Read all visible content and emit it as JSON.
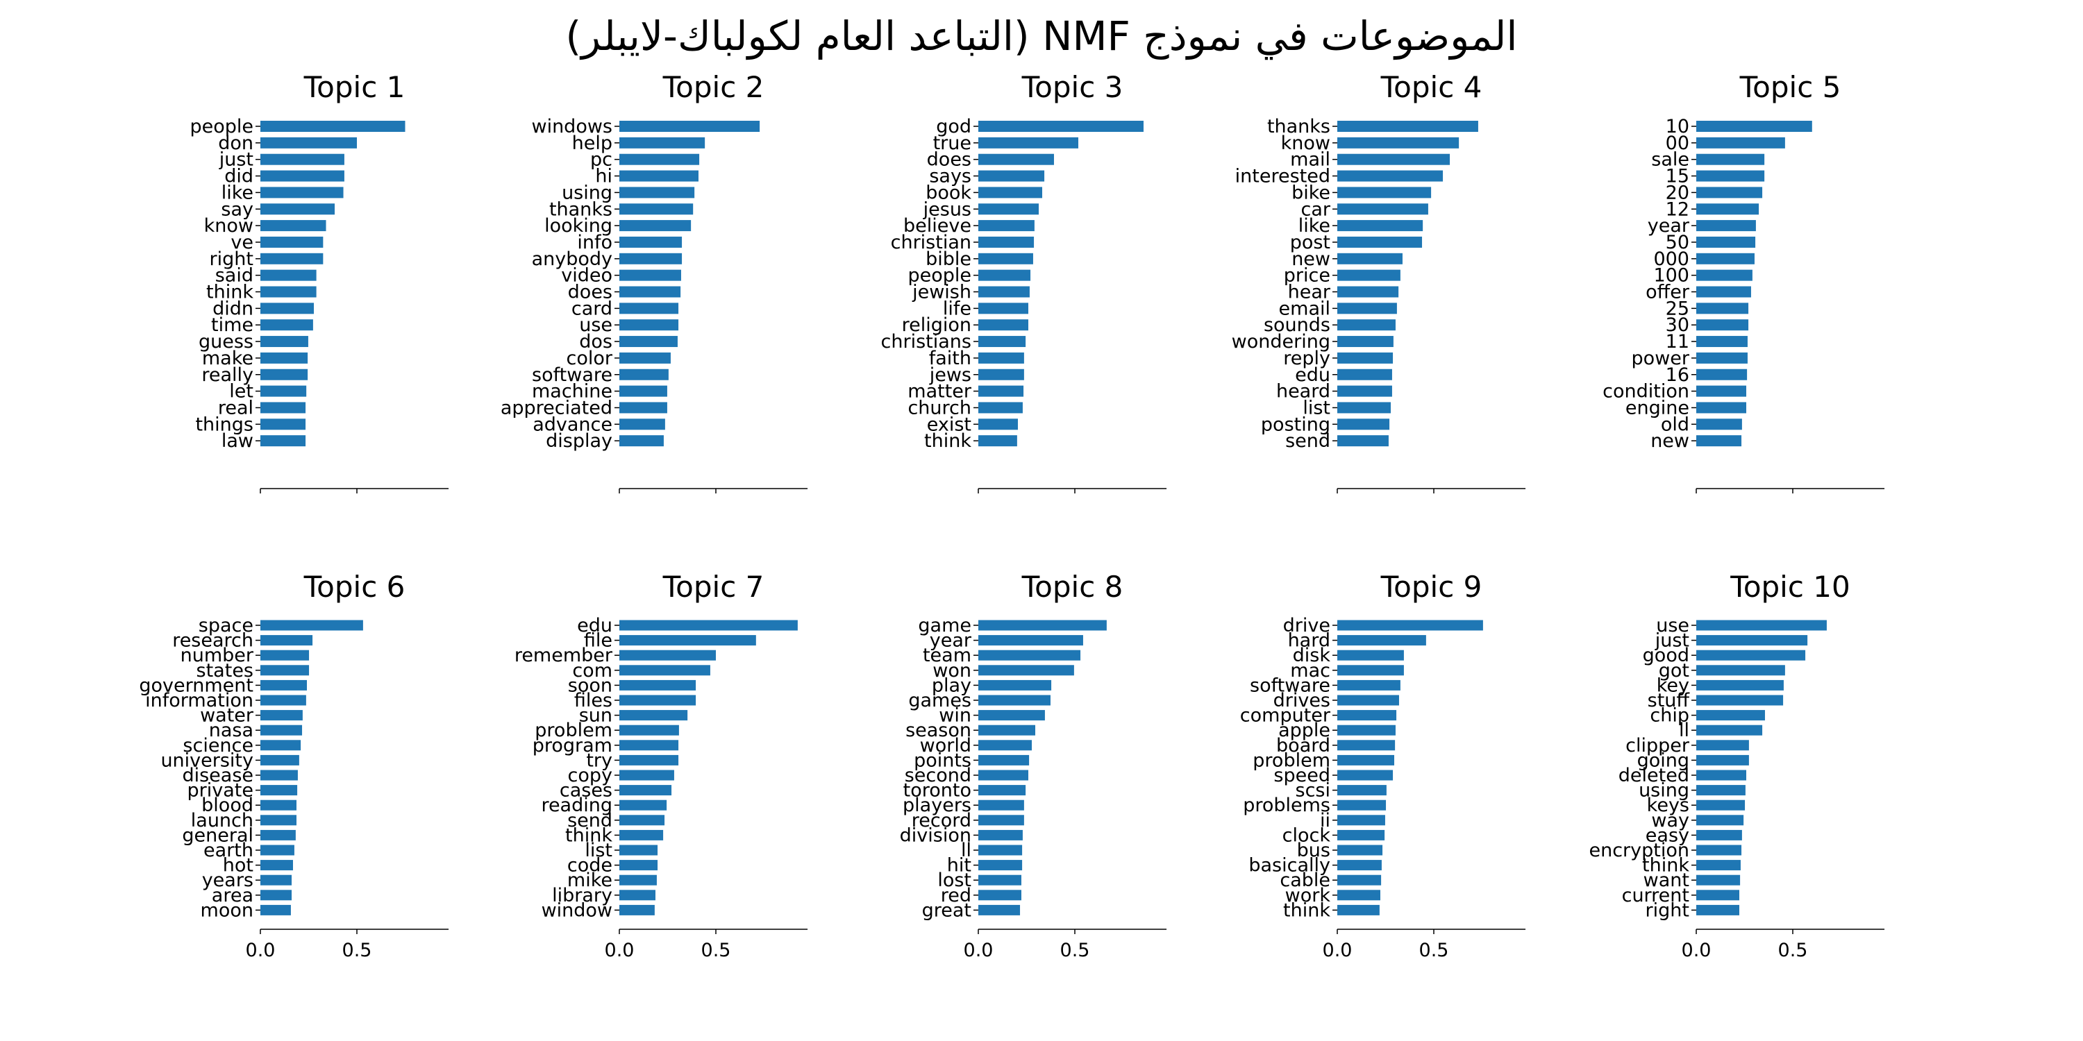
{
  "figure": {
    "title": "الموضوعات في نموذج NMF (التباعد العام لكولباك-لايبلر)"
  },
  "style": {
    "bar_color": "#1f77b4",
    "axis_color": "#000000",
    "background": "#ffffff"
  },
  "chart_data": {
    "type": "bar",
    "orientation": "horizontal",
    "title": "الموضوعات في نموذج NMF (التباعد العام لكولباك-لايبلر)",
    "layout": {
      "rows": 2,
      "cols": 5,
      "grid": false,
      "legend": "none",
      "sharex": true
    },
    "xlim": [
      0,
      0.975
    ],
    "xticks": [
      0.0,
      0.5
    ],
    "xtick_labels": [
      "0.0",
      "0.5"
    ],
    "xtick_labels_shown_on": "bottom row only",
    "subplots": [
      {
        "title": "Topic 1",
        "categories": [
          "people",
          "don",
          "just",
          "did",
          "like",
          "say",
          "know",
          "ve",
          "right",
          "said",
          "think",
          "didn",
          "time",
          "guess",
          "make",
          "really",
          "let",
          "real",
          "things",
          "law"
        ],
        "values": [
          0.75,
          0.5,
          0.435,
          0.435,
          0.43,
          0.385,
          0.34,
          0.325,
          0.325,
          0.29,
          0.29,
          0.277,
          0.273,
          0.248,
          0.245,
          0.245,
          0.238,
          0.234,
          0.234,
          0.234
        ]
      },
      {
        "title": "Topic 2",
        "categories": [
          "windows",
          "help",
          "pc",
          "hi",
          "using",
          "thanks",
          "looking",
          "info",
          "anybody",
          "video",
          "does",
          "card",
          "use",
          "dos",
          "color",
          "software",
          "machine",
          "appreciated",
          "advance",
          "display"
        ],
        "values": [
          0.727,
          0.443,
          0.414,
          0.41,
          0.389,
          0.382,
          0.371,
          0.324,
          0.324,
          0.32,
          0.317,
          0.306,
          0.306,
          0.302,
          0.266,
          0.255,
          0.248,
          0.248,
          0.237,
          0.23
        ]
      },
      {
        "title": "Topic 3",
        "categories": [
          "god",
          "true",
          "does",
          "says",
          "book",
          "jesus",
          "believe",
          "christian",
          "bible",
          "people",
          "jewish",
          "life",
          "religion",
          "christians",
          "faith",
          "jews",
          "matter",
          "church",
          "exist",
          "think"
        ],
        "values": [
          0.856,
          0.518,
          0.392,
          0.342,
          0.331,
          0.313,
          0.291,
          0.288,
          0.284,
          0.27,
          0.266,
          0.259,
          0.259,
          0.245,
          0.237,
          0.237,
          0.234,
          0.23,
          0.205,
          0.201
        ]
      },
      {
        "title": "Topic 4",
        "categories": [
          "thanks",
          "know",
          "mail",
          "interested",
          "bike",
          "car",
          "like",
          "post",
          "new",
          "price",
          "hear",
          "email",
          "sounds",
          "wondering",
          "reply",
          "edu",
          "heard",
          "list",
          "posting",
          "send"
        ],
        "values": [
          0.73,
          0.63,
          0.583,
          0.547,
          0.486,
          0.471,
          0.443,
          0.439,
          0.338,
          0.327,
          0.317,
          0.309,
          0.302,
          0.291,
          0.288,
          0.284,
          0.284,
          0.277,
          0.27,
          0.266
        ]
      },
      {
        "title": "Topic 5",
        "categories": [
          "10",
          "00",
          "sale",
          "15",
          "20",
          "12",
          "year",
          "50",
          "000",
          "100",
          "offer",
          "25",
          "30",
          "11",
          "power",
          "16",
          "condition",
          "engine",
          "old",
          "new"
        ],
        "values": [
          0.6,
          0.46,
          0.353,
          0.353,
          0.342,
          0.324,
          0.309,
          0.306,
          0.302,
          0.291,
          0.284,
          0.27,
          0.27,
          0.266,
          0.266,
          0.263,
          0.259,
          0.259,
          0.237,
          0.234
        ]
      },
      {
        "title": "Topic 6",
        "categories": [
          "space",
          "research",
          "number",
          "states",
          "government",
          "information",
          "water",
          "nasa",
          "science",
          "university",
          "disease",
          "private",
          "blood",
          "launch",
          "general",
          "earth",
          "hot",
          "years",
          "area",
          "moon"
        ],
        "values": [
          0.532,
          0.27,
          0.252,
          0.252,
          0.241,
          0.237,
          0.219,
          0.216,
          0.209,
          0.201,
          0.194,
          0.191,
          0.187,
          0.187,
          0.183,
          0.176,
          0.169,
          0.162,
          0.162,
          0.158
        ]
      },
      {
        "title": "Topic 7",
        "categories": [
          "edu",
          "file",
          "remember",
          "com",
          "soon",
          "files",
          "sun",
          "problem",
          "program",
          "try",
          "copy",
          "cases",
          "reading",
          "send",
          "think",
          "list",
          "code",
          "mike",
          "library",
          "window"
        ],
        "values": [
          0.924,
          0.708,
          0.5,
          0.471,
          0.396,
          0.396,
          0.353,
          0.309,
          0.306,
          0.306,
          0.284,
          0.27,
          0.245,
          0.234,
          0.227,
          0.198,
          0.198,
          0.194,
          0.187,
          0.183
        ]
      },
      {
        "title": "Topic 8",
        "categories": [
          "game",
          "year",
          "team",
          "won",
          "play",
          "games",
          "win",
          "season",
          "world",
          "points",
          "second",
          "toronto",
          "players",
          "record",
          "division",
          "ll",
          "hit",
          "lost",
          "red",
          "great"
        ],
        "values": [
          0.665,
          0.543,
          0.529,
          0.496,
          0.378,
          0.374,
          0.345,
          0.295,
          0.277,
          0.263,
          0.259,
          0.245,
          0.237,
          0.237,
          0.23,
          0.227,
          0.227,
          0.223,
          0.223,
          0.216
        ]
      },
      {
        "title": "Topic 9",
        "categories": [
          "drive",
          "hard",
          "disk",
          "mac",
          "software",
          "drives",
          "computer",
          "apple",
          "board",
          "problem",
          "speed",
          "scsi",
          "problems",
          "ii",
          "clock",
          "bus",
          "basically",
          "cable",
          "work",
          "think"
        ],
        "values": [
          0.755,
          0.46,
          0.345,
          0.345,
          0.327,
          0.32,
          0.306,
          0.302,
          0.299,
          0.295,
          0.288,
          0.255,
          0.252,
          0.248,
          0.245,
          0.234,
          0.23,
          0.227,
          0.223,
          0.219
        ]
      },
      {
        "title": "Topic 10",
        "categories": [
          "use",
          "just",
          "good",
          "got",
          "key",
          "stuff",
          "chip",
          "ll",
          "clipper",
          "going",
          "deleted",
          "using",
          "keys",
          "way",
          "easy",
          "encryption",
          "think",
          "want",
          "current",
          "right"
        ],
        "values": [
          0.676,
          0.576,
          0.565,
          0.46,
          0.453,
          0.45,
          0.356,
          0.342,
          0.273,
          0.273,
          0.259,
          0.255,
          0.252,
          0.245,
          0.237,
          0.234,
          0.23,
          0.227,
          0.223,
          0.223
        ]
      }
    ]
  }
}
